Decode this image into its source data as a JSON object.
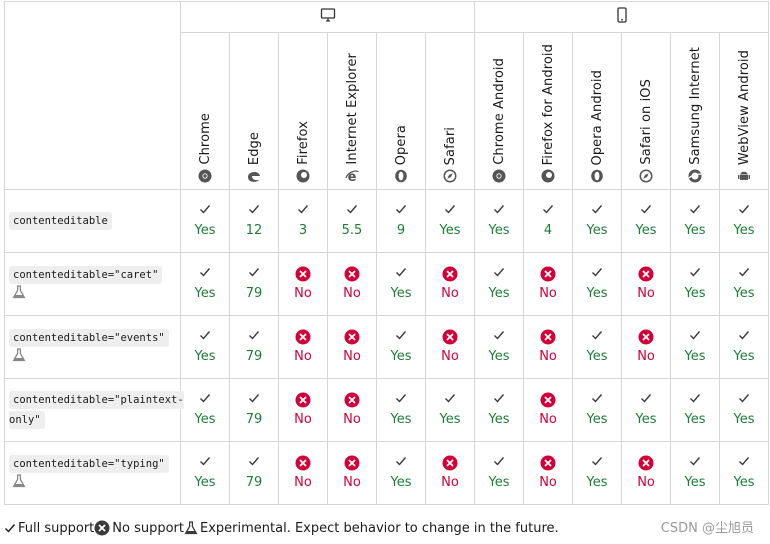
{
  "platforms": [
    {
      "name": "desktop-icon",
      "span": 6
    },
    {
      "name": "mobile-icon",
      "span": 6
    }
  ],
  "browsers": [
    {
      "label": "Chrome",
      "icon": "chrome-icon"
    },
    {
      "label": "Edge",
      "icon": "edge-icon"
    },
    {
      "label": "Firefox",
      "icon": "firefox-icon"
    },
    {
      "label": "Internet Explorer",
      "icon": "ie-icon"
    },
    {
      "label": "Opera",
      "icon": "opera-icon"
    },
    {
      "label": "Safari",
      "icon": "safari-icon"
    },
    {
      "label": "Chrome Android",
      "icon": "chrome-icon"
    },
    {
      "label": "Firefox for Android",
      "icon": "firefox-icon"
    },
    {
      "label": "Opera Android",
      "icon": "opera-icon"
    },
    {
      "label": "Safari on iOS",
      "icon": "safari-icon"
    },
    {
      "label": "Samsung Internet",
      "icon": "samsung-internet-icon"
    },
    {
      "label": "WebView Android",
      "icon": "android-icon"
    }
  ],
  "features": [
    {
      "code": "contenteditable",
      "experimental": false,
      "support": [
        "Yes",
        "12",
        "3",
        "5.5",
        "9",
        "Yes",
        "Yes",
        "4",
        "Yes",
        "Yes",
        "Yes",
        "Yes"
      ],
      "status": [
        "y",
        "y",
        "y",
        "y",
        "y",
        "y",
        "y",
        "y",
        "y",
        "y",
        "y",
        "y"
      ]
    },
    {
      "code": "contenteditable=\"caret\"",
      "experimental": true,
      "support": [
        "Yes",
        "79",
        "No",
        "No",
        "Yes",
        "No",
        "Yes",
        "No",
        "Yes",
        "No",
        "Yes",
        "Yes"
      ],
      "status": [
        "y",
        "y",
        "n",
        "n",
        "y",
        "n",
        "y",
        "n",
        "y",
        "n",
        "y",
        "y"
      ]
    },
    {
      "code": "contenteditable=\"events\"",
      "experimental": true,
      "support": [
        "Yes",
        "79",
        "No",
        "No",
        "Yes",
        "No",
        "Yes",
        "No",
        "Yes",
        "No",
        "Yes",
        "Yes"
      ],
      "status": [
        "y",
        "y",
        "n",
        "n",
        "y",
        "n",
        "y",
        "n",
        "y",
        "n",
        "y",
        "y"
      ]
    },
    {
      "code": "contenteditable=\"plaintext-only\"",
      "experimental": false,
      "support": [
        "Yes",
        "79",
        "No",
        "No",
        "Yes",
        "Yes",
        "Yes",
        "No",
        "Yes",
        "Yes",
        "Yes",
        "Yes"
      ],
      "status": [
        "y",
        "y",
        "n",
        "n",
        "y",
        "y",
        "y",
        "n",
        "y",
        "y",
        "y",
        "y"
      ]
    },
    {
      "code": "contenteditable=\"typing\"",
      "experimental": true,
      "support": [
        "Yes",
        "79",
        "No",
        "No",
        "Yes",
        "No",
        "Yes",
        "No",
        "Yes",
        "No",
        "Yes",
        "Yes"
      ],
      "status": [
        "y",
        "y",
        "n",
        "n",
        "y",
        "n",
        "y",
        "n",
        "y",
        "n",
        "y",
        "y"
      ]
    }
  ],
  "legend": {
    "full": "Full support",
    "no": "No support",
    "experimental": "Experimental. Expect behavior to change in the future."
  },
  "watermark": "CSDN @尘旭员",
  "colors": {
    "yes": "#1e7c3a",
    "no": "#d30038",
    "border": "#d6d6d6"
  }
}
